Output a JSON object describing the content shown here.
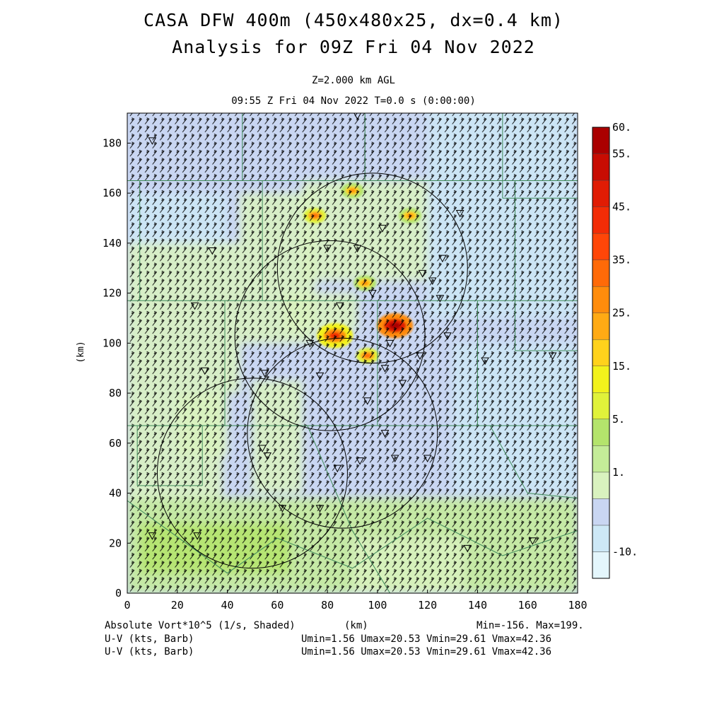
{
  "title": "CASA DFW 400m (450x480x25, dx=0.4 km)",
  "subtitle": "Analysis for 09Z Fri 04 Nov 2022",
  "level": "Z=2.000 km AGL",
  "time_line": "09:55 Z Fri 04 Nov 2022   T=0.0 s (0:00:00)",
  "footer": {
    "field1": "Absolute Vort*10^5 (1/s, Shaded)",
    "xunit": "(km)",
    "minmax": "Min=-156. Max=199.",
    "field2": "U-V (kts, Barb)",
    "stats2": "Umin=1.56 Umax=20.53 Vmin=29.61 Vmax=42.36",
    "field3": "U-V (kts, Barb)",
    "stats3": "Umin=1.56 Umax=20.53 Vmin=29.61 Vmax=42.36"
  },
  "colors": {
    "scale": [
      "#e4f6fc",
      "#cde8f6",
      "#c9d6f2",
      "#d9f2bf",
      "#c4ec98",
      "#b4e46c",
      "#e0f23a",
      "#f2f21c",
      "#ffd21c",
      "#ffaa14",
      "#ff8c0c",
      "#ff6a08",
      "#ff4608",
      "#f22c06",
      "#e01c04",
      "#c80c02",
      "#aa0000"
    ],
    "county_lines": "#3f8a5a",
    "radar_rings": "#000000"
  },
  "colorbar_labels": [
    "60.",
    "55.",
    "45.",
    "35.",
    "25.",
    "15.",
    "5.",
    "1.",
    "-10."
  ],
  "chart_data": {
    "type": "heatmap",
    "title": "CASA DFW 400m (450x480x25, dx=0.4 km)",
    "subtitle": "Analysis for 09Z Fri 04 Nov 2022",
    "xlabel": "(km)",
    "ylabel": "(km)",
    "xlim": [
      0,
      180
    ],
    "ylim": [
      0,
      192
    ],
    "xticks": [
      0,
      20,
      40,
      60,
      80,
      100,
      120,
      140,
      160,
      180
    ],
    "yticks": [
      0,
      20,
      40,
      60,
      80,
      100,
      120,
      140,
      160,
      180
    ],
    "field": "Absolute Vort*10^5 (1/s)",
    "colorbar_range": [
      -10,
      60
    ],
    "min": -156,
    "max": 199,
    "wind_barbs": {
      "field": "U-V (kts)",
      "umin": 1.56,
      "umax": 20.53,
      "vmin": 29.61,
      "vmax": 42.36,
      "typical_direction": "from south-southwest"
    },
    "radar_rings_km": [
      {
        "center": [
          98,
          130
        ],
        "radius": 38
      },
      {
        "center": [
          81,
          103
        ],
        "radius": 38
      },
      {
        "center": [
          86,
          64
        ],
        "radius": 38
      },
      {
        "center": [
          50,
          48
        ],
        "radius": 38
      }
    ],
    "high_vorticity_features": [
      {
        "x": 107,
        "y": 107,
        "value": 60
      },
      {
        "x": 83,
        "y": 103,
        "value": 45
      },
      {
        "x": 96,
        "y": 95,
        "value": 40
      },
      {
        "x": 95,
        "y": 124,
        "value": 35
      },
      {
        "x": 75,
        "y": 151,
        "value": 40
      },
      {
        "x": 113,
        "y": 151,
        "value": 35
      },
      {
        "x": 90,
        "y": 161,
        "value": 35
      }
    ],
    "radar_site_markers": [
      [
        10,
        181
      ],
      [
        34,
        137
      ],
      [
        27,
        115
      ],
      [
        31,
        89
      ],
      [
        73,
        100
      ],
      [
        85,
        115
      ],
      [
        80,
        138
      ],
      [
        92,
        138
      ],
      [
        98,
        120
      ],
      [
        102,
        146
      ],
      [
        105,
        100
      ],
      [
        118,
        128
      ],
      [
        126,
        134
      ],
      [
        133,
        152
      ],
      [
        128,
        103
      ],
      [
        117,
        95
      ],
      [
        110,
        84
      ],
      [
        96,
        77
      ],
      [
        103,
        90
      ],
      [
        77,
        87
      ],
      [
        55,
        88
      ],
      [
        56,
        55
      ],
      [
        54,
        58
      ],
      [
        62,
        34
      ],
      [
        77,
        34
      ],
      [
        84,
        50
      ],
      [
        93,
        53
      ],
      [
        103,
        64
      ],
      [
        107,
        54
      ],
      [
        120,
        54
      ],
      [
        136,
        18
      ],
      [
        28,
        23
      ],
      [
        10,
        23
      ],
      [
        143,
        93
      ],
      [
        162,
        21
      ],
      [
        170,
        95
      ],
      [
        92,
        191
      ],
      [
        125,
        118
      ],
      [
        122,
        125
      ]
    ]
  }
}
